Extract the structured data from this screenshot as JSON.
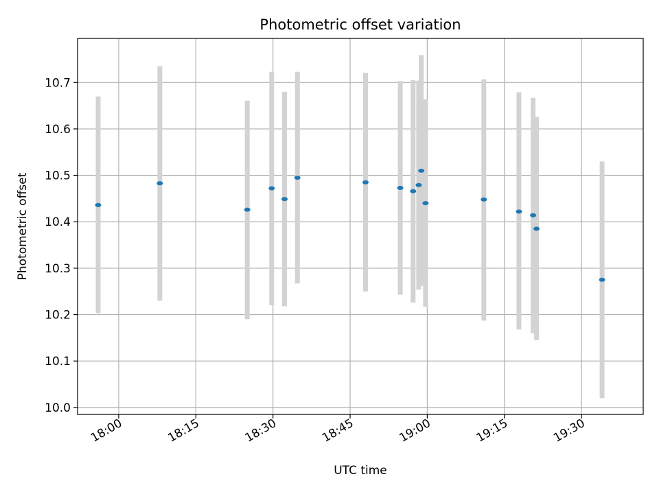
{
  "chart_data": {
    "type": "scatter",
    "title": "Photometric offset variation",
    "xlabel": "UTC time",
    "ylabel": "Photometric offset",
    "x_tick_labels": [
      "18:00",
      "18:15",
      "18:30",
      "18:45",
      "19:00",
      "19:15",
      "19:30"
    ],
    "x_tick_minutes": [
      1080,
      1095,
      1110,
      1125,
      1140,
      1155,
      1170
    ],
    "y_ticks": [
      10.0,
      10.1,
      10.2,
      10.3,
      10.4,
      10.5,
      10.6,
      10.7
    ],
    "y_tick_labels": [
      "10.0",
      "10.1",
      "10.2",
      "10.3",
      "10.4",
      "10.5",
      "10.6",
      "10.7"
    ],
    "xlim": [
      "17:52",
      "19:42"
    ],
    "ylim": [
      9.985,
      10.795
    ],
    "grid": true,
    "colors": {
      "point": "#1f77b4",
      "errorbar": "#d3d3d3",
      "grid": "#b0b0b0"
    },
    "points": [
      {
        "x": "17:56",
        "y": 10.436,
        "y_low": 10.203,
        "y_high": 10.67
      },
      {
        "x": "18:08",
        "y": 10.483,
        "y_low": 10.23,
        "y_high": 10.735
      },
      {
        "x": "18:25",
        "y": 10.426,
        "y_low": 10.19,
        "y_high": 10.661
      },
      {
        "x": "18:29:45",
        "y": 10.472,
        "y_low": 10.22,
        "y_high": 10.723
      },
      {
        "x": "18:32:15",
        "y": 10.449,
        "y_low": 10.218,
        "y_high": 10.68
      },
      {
        "x": "18:34:45",
        "y": 10.495,
        "y_low": 10.267,
        "y_high": 10.723
      },
      {
        "x": "18:48",
        "y": 10.485,
        "y_low": 10.25,
        "y_high": 10.721
      },
      {
        "x": "18:54:45",
        "y": 10.473,
        "y_low": 10.243,
        "y_high": 10.703
      },
      {
        "x": "18:57:15",
        "y": 10.466,
        "y_low": 10.226,
        "y_high": 10.705
      },
      {
        "x": "18:58:20",
        "y": 10.479,
        "y_low": 10.254,
        "y_high": 10.704
      },
      {
        "x": "18:58:50",
        "y": 10.51,
        "y_low": 10.262,
        "y_high": 10.759
      },
      {
        "x": "18:59:40",
        "y": 10.44,
        "y_low": 10.217,
        "y_high": 10.664
      },
      {
        "x": "19:11",
        "y": 10.448,
        "y_low": 10.187,
        "y_high": 10.707
      },
      {
        "x": "19:17:50",
        "y": 10.422,
        "y_low": 10.168,
        "y_high": 10.679
      },
      {
        "x": "19:20:35",
        "y": 10.414,
        "y_low": 10.16,
        "y_high": 10.667
      },
      {
        "x": "19:21:15",
        "y": 10.385,
        "y_low": 10.145,
        "y_high": 10.626
      },
      {
        "x": "19:34",
        "y": 10.275,
        "y_low": 10.02,
        "y_high": 10.53
      }
    ]
  }
}
